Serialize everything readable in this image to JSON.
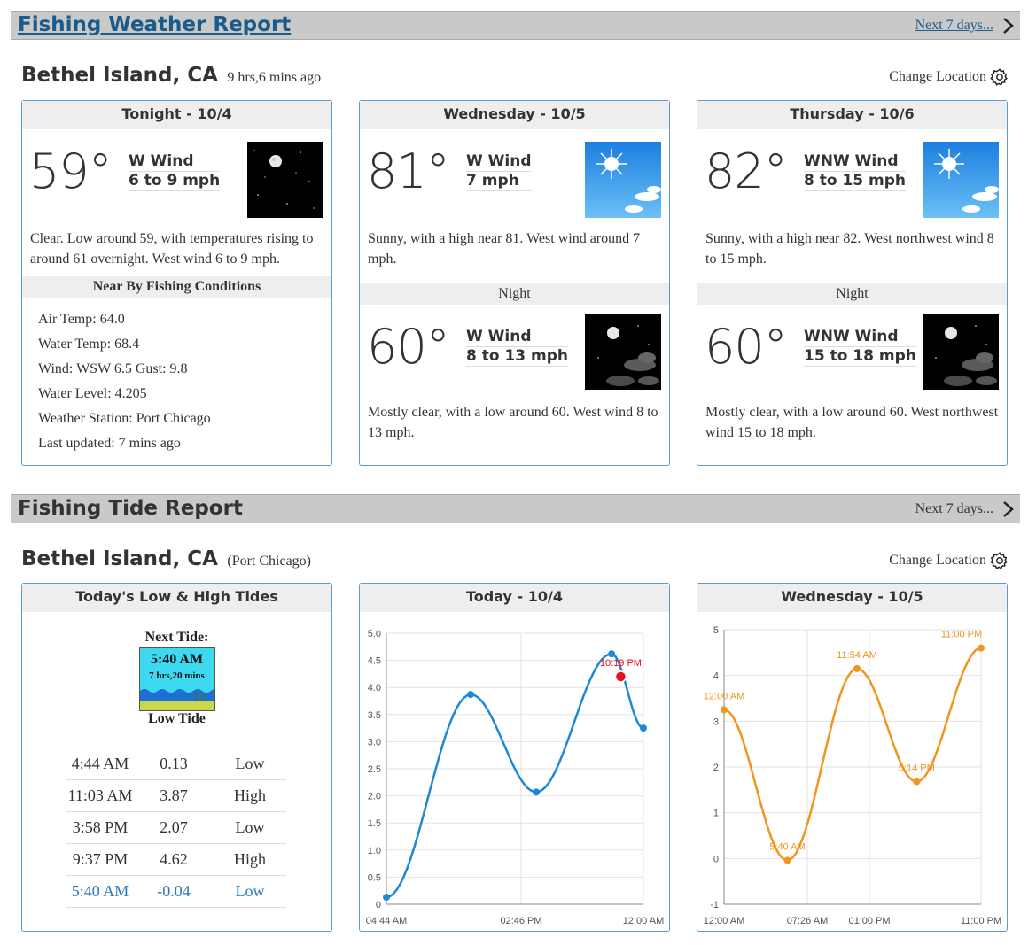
{
  "weather": {
    "title": "Fishing Weather Report",
    "next_days": "Next 7 days...",
    "location": "Bethel Island, CA",
    "updated_ago": "9 hrs,6 mins ago",
    "change_location": "Change Location",
    "cards": [
      {
        "header": "Tonight - 10/4",
        "temp": "59°",
        "wind_dir": "W Wind",
        "wind_speed": "6 to 9 mph",
        "icon": "moon-clear-icon",
        "desc": "Clear. Low around 59, with temperatures rising to around 61 overnight. West wind 6 to 9 mph."
      },
      {
        "header": "Wednesday - 10/5",
        "temp": "81°",
        "wind_dir": "W Wind",
        "wind_speed": "7 mph",
        "icon": "sunny-icon",
        "desc": "Sunny, with a high near 81. West wind around 7 mph.",
        "night": {
          "label": "Night",
          "temp": "60°",
          "wind_dir": "W Wind",
          "wind_speed": "8 to 13 mph",
          "icon": "moon-cloudy-icon",
          "desc": "Mostly clear, with a low around 60. West wind 8 to 13 mph."
        }
      },
      {
        "header": "Thursday - 10/6",
        "temp": "82°",
        "wind_dir": "WNW Wind",
        "wind_speed": "8 to 15 mph",
        "icon": "sunny-icon",
        "desc": "Sunny, with a high near 82. West northwest wind 8 to 15 mph.",
        "night": {
          "label": "Night",
          "temp": "60°",
          "wind_dir": "WNW Wind",
          "wind_speed": "15 to 18 mph",
          "icon": "moon-cloudy-icon",
          "desc": "Mostly clear, with a low around 60. West northwest wind 15 to 18 mph."
        }
      }
    ],
    "conditions": {
      "title": "Near By Fishing Conditions",
      "items": [
        "Air Temp: 64.0",
        "Water Temp: 68.4",
        "Wind: WSW 6.5 Gust: 9.8",
        "Water Level: 4.205",
        "Weather Station: Port Chicago",
        "Last updated: 7 mins ago"
      ]
    }
  },
  "tide": {
    "title": "Fishing Tide Report",
    "next_days": "Next 7 days...",
    "location": "Bethel Island, CA",
    "station": "(Port Chicago)",
    "change_location": "Change Location",
    "today_card": {
      "header": "Today's Low & High Tides",
      "next_tide_label": "Next Tide:",
      "next_tide_time": "5:40 AM",
      "next_tide_remaining": "7 hrs,20 mins",
      "next_tide_kind": "Low Tide",
      "rows": [
        {
          "time": "4:44 AM",
          "height": "0.13",
          "type": "Low"
        },
        {
          "time": "11:03 AM",
          "height": "3.87",
          "type": "High"
        },
        {
          "time": "3:58 PM",
          "height": "2.07",
          "type": "Low"
        },
        {
          "time": "9:37 PM",
          "height": "4.62",
          "type": "High"
        },
        {
          "time": "5:40 AM",
          "height": "-0.04",
          "type": "Low"
        }
      ]
    },
    "chart_cards": [
      {
        "header": "Today - 10/4"
      },
      {
        "header": "Wednesday - 10/5"
      }
    ],
    "colors": {
      "today_line": "#1e88d8",
      "tomorrow_line": "#f0961e",
      "now_marker": "#e8101a"
    }
  },
  "chart_data": [
    {
      "type": "line",
      "title": "Today - 10/4",
      "x_ticks": [
        "04:44 AM",
        "02:46 PM",
        "12:00 AM"
      ],
      "y_ticks": [
        "0",
        "0.5",
        "1.0",
        "1.5",
        "2.0",
        "2.5",
        "3.0",
        "3.5",
        "4.0",
        "4.5",
        "5.0"
      ],
      "ylim": [
        0,
        5
      ],
      "x_hours_range": [
        4.733,
        24
      ],
      "points": [
        {
          "t": 4.733,
          "v": 0.13
        },
        {
          "t": 11.05,
          "v": 3.87
        },
        {
          "t": 15.967,
          "v": 2.07
        },
        {
          "t": 21.617,
          "v": 4.62
        },
        {
          "t": 24,
          "v": 3.25
        }
      ],
      "current": {
        "t": 22.3,
        "v": 4.2,
        "label": "10:19 PM"
      },
      "grid": true
    },
    {
      "type": "line",
      "title": "Wednesday - 10/5",
      "x_ticks": [
        "12:00 AM",
        "07:26 AM",
        "01:00 PM",
        "11:00 PM"
      ],
      "y_ticks": [
        "-1",
        "0",
        "1",
        "2",
        "3",
        "4",
        "5"
      ],
      "ylim": [
        -1,
        5
      ],
      "x_hours_range": [
        0,
        23
      ],
      "points": [
        {
          "t": 0,
          "v": 3.25,
          "label": "12:00 AM"
        },
        {
          "t": 5.667,
          "v": -0.04,
          "label": "5:40 AM"
        },
        {
          "t": 11.9,
          "v": 4.15,
          "label": "11:54 AM"
        },
        {
          "t": 17.233,
          "v": 1.68,
          "label": "5:14 PM"
        },
        {
          "t": 23,
          "v": 4.6,
          "label": "11:00 PM"
        }
      ],
      "grid": true
    }
  ]
}
